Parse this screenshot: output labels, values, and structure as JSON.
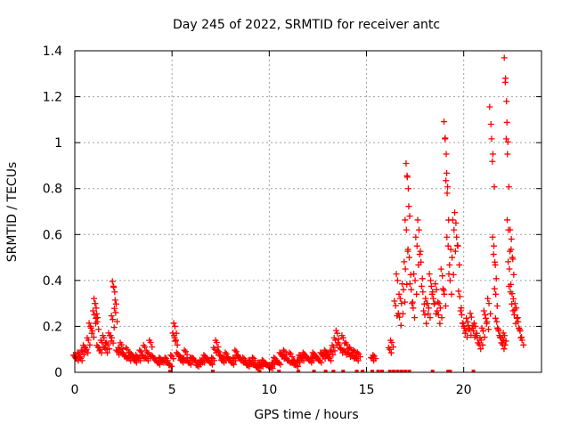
{
  "chart_data": {
    "type": "scatter",
    "title": "Day 245 of 2022, SRMTID for receiver antc",
    "xlabel": "GPS time / hours",
    "ylabel": "SRMTID / TECUs",
    "xlim": [
      0,
      24
    ],
    "ylim": [
      0,
      1.4
    ],
    "x_ticks": [
      0,
      5,
      10,
      15,
      20
    ],
    "y_ticks": [
      0,
      0.2,
      0.4,
      0.6,
      0.8,
      1,
      1.2,
      1.4
    ],
    "y_tick_labels": [
      "0",
      "0.2",
      "0.4",
      "0.6",
      "0.8",
      "1",
      "1.2",
      "1.4"
    ],
    "grid": true,
    "marker": "+",
    "color": "#ff0000",
    "series": [
      {
        "name": "SRMTID",
        "x": [
          0.0,
          0.1,
          0.2,
          0.3,
          0.4,
          0.5,
          0.6,
          0.7,
          0.8,
          0.9,
          1.0,
          1.05,
          1.1,
          1.15,
          1.2,
          1.3,
          1.4,
          1.5,
          1.6,
          1.7,
          1.8,
          1.9,
          1.95,
          2.0,
          2.05,
          2.1,
          2.2,
          2.3,
          2.4,
          2.5,
          2.6,
          2.7,
          2.8,
          2.9,
          3.0,
          3.1,
          3.2,
          3.3,
          3.4,
          3.5,
          3.6,
          3.7,
          3.8,
          3.9,
          4.0,
          4.1,
          4.2,
          4.3,
          4.4,
          4.5,
          4.6,
          4.7,
          4.8,
          4.9,
          5.0,
          5.1,
          5.15,
          5.2,
          5.3,
          5.4,
          5.5,
          5.6,
          5.7,
          5.8,
          5.9,
          6.0,
          6.1,
          6.2,
          6.3,
          6.4,
          6.5,
          6.6,
          6.7,
          6.8,
          6.9,
          7.0,
          7.1,
          7.2,
          7.3,
          7.4,
          7.5,
          7.6,
          7.7,
          7.8,
          7.9,
          8.0,
          8.1,
          8.2,
          8.3,
          8.4,
          8.5,
          8.6,
          8.7,
          8.8,
          8.9,
          9.0,
          9.1,
          9.2,
          9.3,
          9.4,
          9.5,
          9.6,
          9.7,
          9.8,
          9.9,
          10.0,
          10.1,
          10.2,
          10.3,
          10.4,
          10.5,
          10.6,
          10.7,
          10.8,
          10.9,
          11.0,
          11.1,
          11.2,
          11.3,
          11.4,
          11.5,
          11.6,
          11.7,
          11.8,
          11.9,
          12.0,
          12.1,
          12.2,
          12.3,
          12.4,
          12.5,
          12.6,
          12.7,
          12.8,
          12.9,
          13.0,
          13.1,
          13.2,
          13.3,
          13.4,
          13.5,
          13.6,
          13.7,
          13.8,
          13.9,
          14.0,
          14.1,
          14.2,
          14.3,
          14.4,
          14.5,
          14.6,
          15.3,
          15.4,
          16.2,
          16.3,
          16.5,
          16.6,
          16.7,
          16.8,
          16.9,
          17.0,
          17.05,
          17.1,
          17.15,
          17.2,
          17.3,
          17.4,
          17.5,
          17.6,
          17.7,
          17.8,
          17.9,
          18.0,
          18.1,
          18.2,
          18.3,
          18.4,
          18.5,
          18.6,
          18.7,
          18.8,
          18.9,
          19.0,
          19.05,
          19.1,
          19.15,
          19.2,
          19.3,
          19.4,
          19.5,
          19.6,
          19.7,
          19.8,
          19.9,
          20.0,
          20.1,
          20.2,
          20.3,
          20.4,
          20.5,
          20.6,
          20.7,
          20.8,
          20.9,
          21.0,
          21.1,
          21.2,
          21.3,
          21.4,
          21.5,
          21.55,
          21.6,
          21.65,
          21.7,
          21.8,
          21.9,
          22.0,
          22.05,
          22.1,
          22.15,
          22.2,
          22.25,
          22.3,
          22.35,
          22.4,
          22.45,
          22.5,
          22.55,
          22.6,
          22.7,
          22.8,
          22.9,
          23.0
        ],
        "y": [
          0.07,
          0.06,
          0.08,
          0.06,
          0.09,
          0.11,
          0.1,
          0.14,
          0.2,
          0.18,
          0.25,
          0.3,
          0.28,
          0.22,
          0.11,
          0.1,
          0.13,
          0.15,
          0.1,
          0.12,
          0.16,
          0.15,
          0.23,
          0.37,
          0.35,
          0.26,
          0.09,
          0.1,
          0.12,
          0.08,
          0.07,
          0.1,
          0.06,
          0.08,
          0.07,
          0.05,
          0.07,
          0.06,
          0.09,
          0.07,
          0.11,
          0.06,
          0.08,
          0.13,
          0.07,
          0.06,
          0.05,
          0.04,
          0.06,
          0.05,
          0.05,
          0.06,
          0.04,
          0.03,
          0.07,
          0.16,
          0.2,
          0.14,
          0.08,
          0.07,
          0.05,
          0.06,
          0.09,
          0.05,
          0.04,
          0.06,
          0.06,
          0.05,
          0.03,
          0.04,
          0.05,
          0.05,
          0.07,
          0.06,
          0.05,
          0.04,
          0.06,
          0.1,
          0.13,
          0.09,
          0.07,
          0.05,
          0.06,
          0.08,
          0.06,
          0.05,
          0.04,
          0.06,
          0.09,
          0.07,
          0.06,
          0.05,
          0.06,
          0.04,
          0.03,
          0.05,
          0.04,
          0.06,
          0.03,
          0.02,
          0.04,
          0.03,
          0.05,
          0.04,
          0.03,
          0.03,
          0.02,
          0.04,
          0.06,
          0.05,
          0.04,
          0.08,
          0.07,
          0.09,
          0.06,
          0.05,
          0.08,
          0.04,
          0.05,
          0.03,
          0.05,
          0.07,
          0.06,
          0.08,
          0.07,
          0.06,
          0.05,
          0.06,
          0.08,
          0.07,
          0.06,
          0.05,
          0.08,
          0.07,
          0.09,
          0.08,
          0.06,
          0.09,
          0.11,
          0.14,
          0.17,
          0.12,
          0.1,
          0.15,
          0.09,
          0.12,
          0.08,
          0.1,
          0.07,
          0.09,
          0.06,
          0.08,
          0.06,
          0.07,
          0.1,
          0.13,
          0.29,
          0.4,
          0.24,
          0.3,
          0.36,
          0.45,
          0.62,
          0.85,
          0.8,
          0.5,
          0.36,
          0.28,
          0.4,
          0.55,
          0.62,
          0.48,
          0.35,
          0.25,
          0.3,
          0.28,
          0.4,
          0.35,
          0.3,
          0.36,
          0.25,
          0.28,
          0.42,
          0.34,
          1.02,
          0.95,
          0.78,
          0.55,
          0.4,
          0.5,
          0.62,
          0.65,
          0.55,
          0.33,
          0.25,
          0.2,
          0.18,
          0.22,
          0.19,
          0.24,
          0.18,
          0.2,
          0.15,
          0.12,
          0.14,
          0.18,
          0.25,
          0.22,
          0.3,
          1.08,
          0.95,
          0.55,
          0.48,
          0.34,
          0.22,
          0.18,
          0.15,
          0.12,
          0.14,
          0.16,
          1.28,
          1.18,
          0.95,
          0.62,
          0.45,
          0.35,
          0.58,
          0.5,
          0.32,
          0.25,
          0.28,
          0.22,
          0.18,
          0.14
        ],
        "baseline_x": [
          4.9,
          7.1,
          9.5,
          10.5,
          11.5,
          12.3,
          12.9,
          13.3,
          13.8,
          14.5,
          14.8,
          15.3,
          15.6,
          15.8,
          16.2,
          16.4,
          16.6,
          16.8,
          17.0,
          17.2,
          18.4,
          19.2,
          19.3,
          20.5
        ]
      }
    ]
  }
}
